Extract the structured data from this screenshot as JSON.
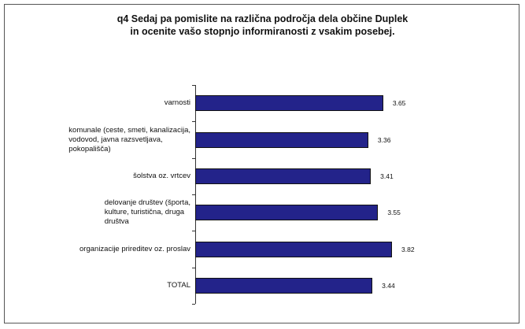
{
  "chart_data": {
    "type": "bar",
    "orientation": "horizontal",
    "title": "q4 Sedaj pa pomislite na različna področja dela občine Duplek\nin ocenite vašo stopnjo informiranosti z vsakim posebej.",
    "categories": [
      "varnosti",
      "komunale (ceste, smeti, kanalizacija,\nvodovod, javna razsvetljava,\npokopališča)",
      "šolstva oz. vrtcev",
      "delovanje društev (športa,\nkulture, turistična, druga\ndruštva",
      "organizacije prireditev oz. proslav",
      "TOTAL"
    ],
    "values": [
      3.65,
      3.36,
      3.41,
      3.55,
      3.82,
      3.44
    ],
    "color": "#23238a"
  }
}
